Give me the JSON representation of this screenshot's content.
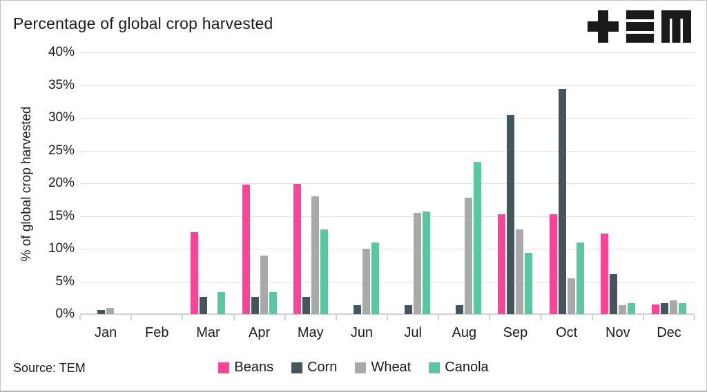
{
  "header": {
    "logo": "tem-logo"
  },
  "footer": {
    "source": "Source: TEM"
  },
  "colors": {
    "beans": "#fb4397",
    "corn": "#44565c",
    "wheat": "#a9a9a9",
    "canola": "#5bc7a0",
    "gridline": "#e0e0e0",
    "axis": "#d2d2d2",
    "text": "#1a1a1a"
  },
  "chart_data": {
    "type": "bar",
    "title": "Percentage of global crop harvested",
    "ylabel": "% of global crop harvested",
    "ylim": [
      0,
      40
    ],
    "ytick_step": 5,
    "ytick_suffix": "%",
    "grid": true,
    "legend_position": "bottom",
    "categories": [
      "Jan",
      "Feb",
      "Mar",
      "Apr",
      "May",
      "Jun",
      "Jul",
      "Aug",
      "Sep",
      "Oct",
      "Nov",
      "Dec"
    ],
    "series": [
      {
        "name": "Beans",
        "color": "#fb4397",
        "values": [
          0,
          0,
          12.5,
          19.8,
          19.9,
          0,
          0,
          0,
          15.3,
          15.3,
          12.3,
          1.5
        ]
      },
      {
        "name": "Corn",
        "color": "#44565c",
        "values": [
          0.6,
          0,
          2.6,
          2.6,
          2.6,
          1.4,
          1.4,
          1.4,
          30.4,
          34.4,
          6.1,
          1.7
        ]
      },
      {
        "name": "Wheat",
        "color": "#a9a9a9",
        "values": [
          1.0,
          0,
          0,
          9.0,
          18.0,
          10.0,
          15.5,
          17.8,
          12.9,
          5.5,
          1.4,
          2.1
        ]
      },
      {
        "name": "Canola",
        "color": "#5bc7a0",
        "values": [
          0,
          0,
          3.4,
          3.4,
          13.0,
          11.0,
          15.7,
          23.3,
          9.4,
          10.9,
          1.7,
          1.7
        ]
      }
    ]
  }
}
